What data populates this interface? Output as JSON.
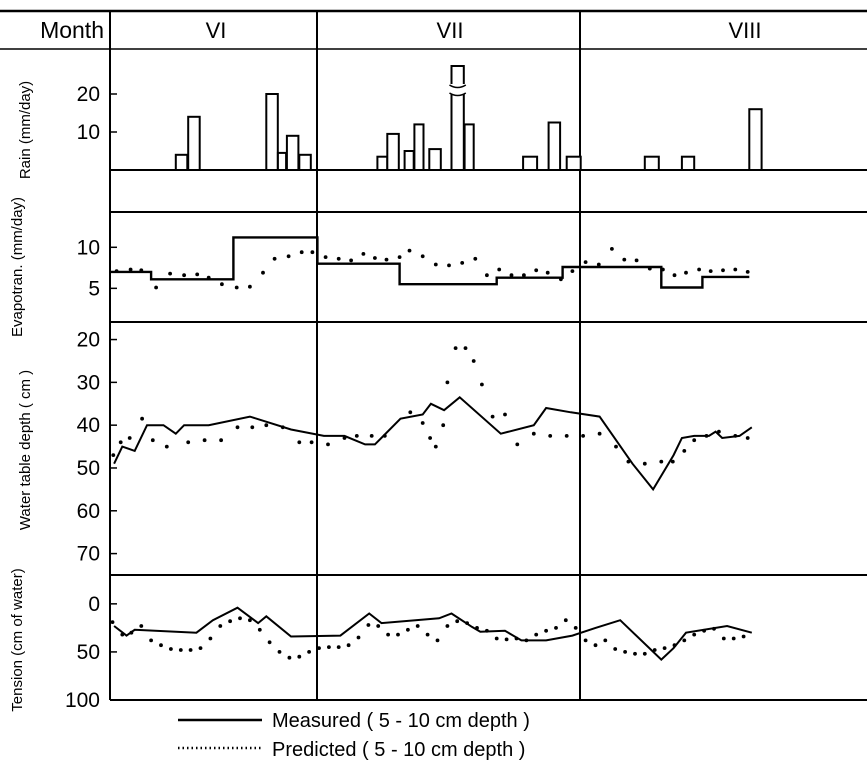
{
  "chart_data": {
    "type": "line",
    "header": {
      "label": "Month",
      "months": [
        "VI",
        "VII",
        "VIII"
      ]
    },
    "legend": {
      "placement": "bottom",
      "measured": "Measured ( 5 - 10 cm depth )",
      "predicted": "Predicted ( 5 - 10 cm depth )"
    },
    "panels": {
      "rain": {
        "type": "bar",
        "ylabel": "Rain (mm/day)",
        "yticks": [
          10,
          20
        ],
        "ylim": [
          0,
          30
        ],
        "broken_bar_note": "tallest bar in VII is drawn with an axis break",
        "bars": [
          {
            "x": 8,
            "y": 4,
            "w": 1.4
          },
          {
            "x": 9.5,
            "y": 14,
            "w": 1.4
          },
          {
            "x": 19,
            "y": 20,
            "w": 1.4
          },
          {
            "x": 20.4,
            "y": 4.5,
            "w": 1.0
          },
          {
            "x": 21.5,
            "y": 9,
            "w": 1.4
          },
          {
            "x": 23,
            "y": 4,
            "w": 1.4
          },
          {
            "x": 32.5,
            "y": 3.5,
            "w": 1.2
          },
          {
            "x": 33.7,
            "y": 9.5,
            "w": 1.4
          },
          {
            "x": 35.8,
            "y": 5,
            "w": 1.1
          },
          {
            "x": 37,
            "y": 12,
            "w": 1.1
          },
          {
            "x": 38.8,
            "y": 5.5,
            "w": 1.4
          },
          {
            "x": 41.5,
            "y": 28,
            "w": 1.5,
            "broken": true
          },
          {
            "x": 43.1,
            "y": 12,
            "w": 1.1
          },
          {
            "x": 50.2,
            "y": 3.5,
            "w": 1.7
          },
          {
            "x": 53.3,
            "y": 12.5,
            "w": 1.4
          },
          {
            "x": 55.5,
            "y": 3.5,
            "w": 1.7
          },
          {
            "x": 65,
            "y": 3.5,
            "w": 1.7
          },
          {
            "x": 69.5,
            "y": 3.5,
            "w": 1.5
          },
          {
            "x": 77.7,
            "y": 16,
            "w": 1.5
          }
        ]
      },
      "et": {
        "ylabel": "Evapotran. (mm/day)",
        "yticks": [
          5,
          10
        ],
        "ylim": [
          0.9,
          14.3
        ],
        "measured": [
          [
            0,
            7
          ],
          [
            5,
            7
          ],
          [
            5,
            6.1
          ],
          [
            15,
            6.1
          ],
          [
            15,
            11.2
          ],
          [
            25.2,
            11.2
          ],
          [
            25.2,
            8
          ],
          [
            35.2,
            8
          ],
          [
            35.2,
            5.5
          ],
          [
            47,
            5.5
          ],
          [
            47,
            6.3
          ],
          [
            55,
            6.3
          ],
          [
            55,
            7.6
          ],
          [
            67,
            7.6
          ],
          [
            67,
            5.1
          ],
          [
            72,
            5.1
          ],
          [
            72,
            6.4
          ],
          [
            77.7,
            6.4
          ]
        ],
        "predicted": [
          [
            0.8,
            7.1
          ],
          [
            2.5,
            7.3
          ],
          [
            3.8,
            7.2
          ],
          [
            5.6,
            5.1
          ],
          [
            7.3,
            6.8
          ],
          [
            9,
            6.6
          ],
          [
            10.6,
            6.7
          ],
          [
            12,
            6.3
          ],
          [
            13.6,
            5.5
          ],
          [
            15.4,
            5.1
          ],
          [
            17,
            5.2
          ],
          [
            18.6,
            6.9
          ],
          [
            20,
            8.6
          ],
          [
            21.7,
            8.9
          ],
          [
            23.3,
            9.4
          ],
          [
            24.6,
            9.4
          ],
          [
            26.2,
            8.8
          ],
          [
            27.8,
            8.6
          ],
          [
            29.3,
            8.4
          ],
          [
            30.8,
            9.2
          ],
          [
            32.2,
            8.7
          ],
          [
            33.6,
            8.5
          ],
          [
            35.2,
            8.8
          ],
          [
            36.4,
            9.6
          ],
          [
            38,
            8.9
          ],
          [
            39.6,
            7.9
          ],
          [
            41.2,
            7.8
          ],
          [
            42.8,
            8.1
          ],
          [
            44.4,
            8.6
          ],
          [
            45.8,
            6.6
          ],
          [
            47.3,
            7.3
          ],
          [
            48.8,
            6.6
          ],
          [
            50.3,
            6.6
          ],
          [
            51.8,
            7.2
          ],
          [
            53.2,
            6.9
          ],
          [
            54.8,
            6.1
          ],
          [
            56.2,
            7.1
          ],
          [
            57.8,
            8.2
          ],
          [
            59.4,
            7.9
          ],
          [
            61,
            9.8
          ],
          [
            62.5,
            8.5
          ],
          [
            64,
            8.4
          ],
          [
            65.6,
            7.4
          ],
          [
            67.2,
            7.3
          ],
          [
            68.6,
            6.6
          ],
          [
            70,
            6.9
          ],
          [
            71.6,
            7.3
          ],
          [
            73,
            7.1
          ],
          [
            74.5,
            7.2
          ],
          [
            76,
            7.3
          ],
          [
            77.5,
            7
          ]
        ]
      },
      "wt": {
        "ylabel": "Water table depth ( cm )",
        "yticks": [
          20,
          30,
          40,
          50,
          60,
          70
        ],
        "ylim": [
          15.9,
          75
        ],
        "inverted": true,
        "measured": [
          [
            0.5,
            49
          ],
          [
            1.5,
            45
          ],
          [
            3,
            46
          ],
          [
            4.5,
            40
          ],
          [
            6.5,
            40
          ],
          [
            8,
            42
          ],
          [
            9,
            40
          ],
          [
            12,
            40
          ],
          [
            17,
            38
          ],
          [
            22,
            41
          ],
          [
            26,
            42.5
          ],
          [
            28.5,
            42.5
          ],
          [
            31,
            44.5
          ],
          [
            32.2,
            44.5
          ],
          [
            35.3,
            38.5
          ],
          [
            38,
            37.5
          ],
          [
            39,
            35
          ],
          [
            40.6,
            36.5
          ],
          [
            42.5,
            33.5
          ],
          [
            47.5,
            42
          ],
          [
            51.5,
            40
          ],
          [
            53,
            36
          ],
          [
            56,
            37
          ],
          [
            59.5,
            38
          ],
          [
            63.5,
            49
          ],
          [
            66,
            55
          ],
          [
            68.5,
            47
          ],
          [
            69.5,
            43
          ],
          [
            71,
            42.5
          ],
          [
            72.8,
            42.5
          ],
          [
            73.6,
            41.5
          ],
          [
            74.4,
            43
          ],
          [
            76.5,
            42.5
          ],
          [
            78,
            40.5
          ]
        ],
        "predicted": [
          [
            0.4,
            47
          ],
          [
            1.3,
            44
          ],
          [
            2.4,
            43
          ],
          [
            3.9,
            38.5
          ],
          [
            5.2,
            43.5
          ],
          [
            6.9,
            45
          ],
          [
            9.5,
            44
          ],
          [
            11.5,
            43.5
          ],
          [
            13.5,
            43.5
          ],
          [
            15.5,
            40.5
          ],
          [
            17.3,
            40.5
          ],
          [
            19,
            40
          ],
          [
            21,
            40.5
          ],
          [
            23,
            44
          ],
          [
            24.5,
            44
          ],
          [
            26.5,
            44.5
          ],
          [
            28.5,
            43
          ],
          [
            30,
            42.5
          ],
          [
            31.8,
            42.5
          ],
          [
            33.4,
            42.5
          ],
          [
            36.5,
            37
          ],
          [
            38,
            39.5
          ],
          [
            38.9,
            43
          ],
          [
            39.6,
            45
          ],
          [
            40.5,
            40
          ],
          [
            41,
            30
          ],
          [
            42,
            22
          ],
          [
            43.2,
            22
          ],
          [
            44.2,
            25
          ],
          [
            45.2,
            30.5
          ],
          [
            46.5,
            38
          ],
          [
            48,
            37.5
          ],
          [
            49.5,
            44.5
          ],
          [
            51.5,
            42
          ],
          [
            53.5,
            42.5
          ],
          [
            55.5,
            42.5
          ],
          [
            57.5,
            42.5
          ],
          [
            59.5,
            42
          ],
          [
            61.5,
            45
          ],
          [
            63,
            48.5
          ],
          [
            65,
            49
          ],
          [
            67,
            48.5
          ],
          [
            68.4,
            48.5
          ],
          [
            69.8,
            46
          ],
          [
            71,
            43.5
          ],
          [
            72.5,
            42.5
          ],
          [
            74,
            41.5
          ],
          [
            76,
            42.5
          ],
          [
            77.5,
            43
          ]
        ]
      },
      "tension": {
        "ylabel": "Tension (cm of water)",
        "yticks": [
          0,
          50,
          100
        ],
        "ylim": [
          -30,
          100
        ],
        "inverted": true,
        "measured": [
          [
            0.5,
            23
          ],
          [
            2,
            33
          ],
          [
            3,
            27
          ],
          [
            10.5,
            30
          ],
          [
            12.5,
            17
          ],
          [
            15.5,
            4
          ],
          [
            18,
            20
          ],
          [
            19,
            13
          ],
          [
            22,
            34
          ],
          [
            28,
            33
          ],
          [
            31.5,
            10
          ],
          [
            33,
            20
          ],
          [
            40,
            15
          ],
          [
            41.5,
            10
          ],
          [
            44,
            24
          ],
          [
            45,
            29
          ],
          [
            48,
            28
          ],
          [
            50,
            38
          ],
          [
            53,
            38
          ],
          [
            56.2,
            33
          ],
          [
            59,
            25
          ],
          [
            62,
            17
          ],
          [
            67,
            58
          ],
          [
            68.5,
            46
          ],
          [
            70,
            30
          ],
          [
            75,
            23
          ],
          [
            78,
            30
          ]
        ],
        "predicted": [
          [
            0.3,
            19
          ],
          [
            1.5,
            32
          ],
          [
            2.6,
            30
          ],
          [
            3.8,
            23
          ],
          [
            5,
            38
          ],
          [
            6.2,
            43
          ],
          [
            7.4,
            47
          ],
          [
            8.6,
            48
          ],
          [
            9.8,
            48
          ],
          [
            11,
            46
          ],
          [
            12.2,
            36
          ],
          [
            13.4,
            23
          ],
          [
            14.6,
            18
          ],
          [
            15.8,
            15
          ],
          [
            17,
            17
          ],
          [
            18.2,
            27
          ],
          [
            19.4,
            40
          ],
          [
            20.6,
            50
          ],
          [
            21.8,
            56
          ],
          [
            23,
            55
          ],
          [
            24.2,
            50
          ],
          [
            25.4,
            46
          ],
          [
            26.6,
            45
          ],
          [
            27.8,
            45
          ],
          [
            29,
            43
          ],
          [
            30.2,
            35
          ],
          [
            31.4,
            22
          ],
          [
            32.6,
            23
          ],
          [
            33.8,
            32
          ],
          [
            35,
            32
          ],
          [
            36.2,
            27
          ],
          [
            37.4,
            23
          ],
          [
            38.6,
            32
          ],
          [
            39.8,
            38
          ],
          [
            41,
            23
          ],
          [
            42.2,
            18
          ],
          [
            43.4,
            20
          ],
          [
            44.6,
            25
          ],
          [
            45.8,
            28
          ],
          [
            47,
            36
          ],
          [
            48.2,
            37
          ],
          [
            49.4,
            36
          ],
          [
            50.6,
            38
          ],
          [
            51.8,
            32
          ],
          [
            53,
            28
          ],
          [
            54.2,
            25
          ],
          [
            55.4,
            17
          ],
          [
            56.6,
            25
          ],
          [
            57.8,
            38
          ],
          [
            59,
            43
          ],
          [
            60.2,
            38
          ],
          [
            61.4,
            47
          ],
          [
            62.6,
            50
          ],
          [
            63.8,
            52
          ],
          [
            65,
            52
          ],
          [
            66.2,
            48
          ],
          [
            67.4,
            46
          ],
          [
            68.6,
            43
          ],
          [
            69.8,
            38
          ],
          [
            71,
            32
          ],
          [
            72.2,
            28
          ],
          [
            73.4,
            26
          ],
          [
            74.6,
            36
          ],
          [
            75.8,
            36
          ],
          [
            77,
            34
          ]
        ]
      }
    }
  }
}
